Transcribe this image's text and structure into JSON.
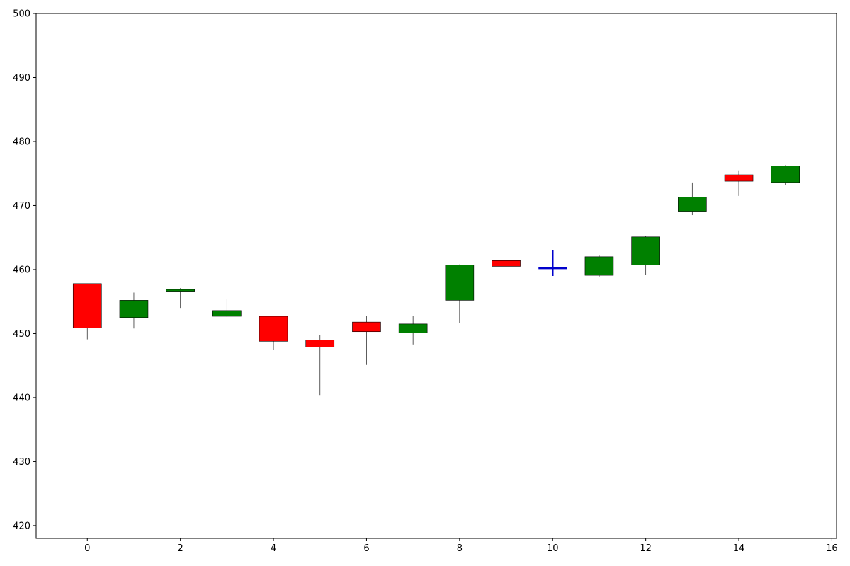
{
  "chart_data": {
    "type": "candlestick",
    "title": "",
    "xlabel": "",
    "ylabel": "",
    "xlim": [
      -1.1,
      16.1
    ],
    "ylim": [
      418,
      500
    ],
    "xticks": [
      0,
      2,
      4,
      6,
      8,
      10,
      12,
      14,
      16
    ],
    "yticks": [
      420,
      430,
      440,
      450,
      460,
      470,
      480,
      490,
      500
    ],
    "grid": false,
    "colors": {
      "up": "#008000",
      "down": "#ff0000",
      "marker": "#0000cc",
      "edge": "#000000"
    },
    "candles": [
      {
        "x": 0,
        "open": 457.8,
        "high": 457.8,
        "low": 449.1,
        "close": 450.9
      },
      {
        "x": 1,
        "open": 452.5,
        "high": 456.4,
        "low": 450.8,
        "close": 455.2
      },
      {
        "x": 2,
        "open": 456.5,
        "high": 457.1,
        "low": 453.9,
        "close": 456.9
      },
      {
        "x": 3,
        "open": 452.7,
        "high": 455.4,
        "low": 452.6,
        "close": 453.6
      },
      {
        "x": 4,
        "open": 452.7,
        "high": 452.8,
        "low": 447.4,
        "close": 448.8
      },
      {
        "x": 5,
        "open": 449.0,
        "high": 449.8,
        "low": 440.3,
        "close": 447.9
      },
      {
        "x": 6,
        "open": 451.8,
        "high": 452.8,
        "low": 445.1,
        "close": 450.3
      },
      {
        "x": 7,
        "open": 450.1,
        "high": 452.8,
        "low": 448.3,
        "close": 451.5
      },
      {
        "x": 8,
        "open": 455.2,
        "high": 460.8,
        "low": 451.6,
        "close": 460.7
      },
      {
        "x": 9,
        "open": 461.4,
        "high": 461.6,
        "low": 459.5,
        "close": 460.5
      },
      {
        "x": 10,
        "open": 460.2,
        "high": 463.0,
        "low": 459.0,
        "close": 460.2
      },
      {
        "x": 11,
        "open": 459.1,
        "high": 462.3,
        "low": 458.8,
        "close": 462.0
      },
      {
        "x": 12,
        "open": 460.7,
        "high": 465.2,
        "low": 459.2,
        "close": 465.1
      },
      {
        "x": 13,
        "open": 469.1,
        "high": 473.6,
        "low": 468.5,
        "close": 471.3
      },
      {
        "x": 14,
        "open": 474.8,
        "high": 475.5,
        "low": 471.5,
        "close": 473.8
      },
      {
        "x": 15,
        "open": 473.6,
        "high": 476.3,
        "low": 473.2,
        "close": 476.2
      }
    ]
  }
}
